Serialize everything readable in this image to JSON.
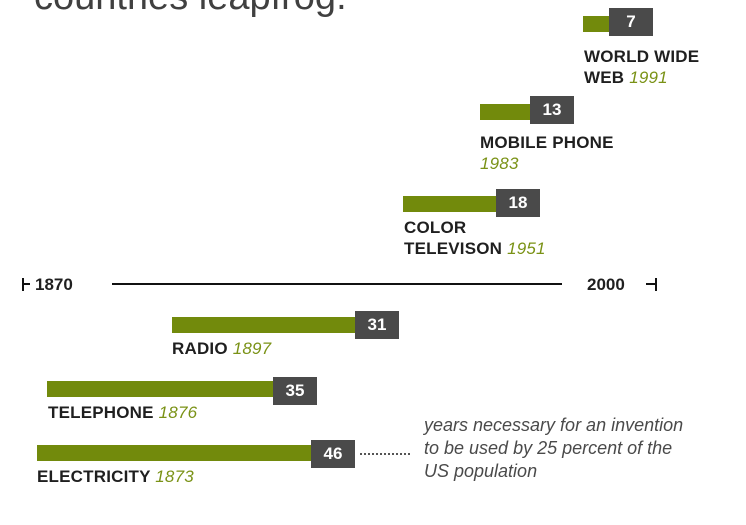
{
  "headline": "countries leapfrog.",
  "axis": {
    "start_label": "1870",
    "end_label": "2000"
  },
  "note": "years necessary for an invention to be used by 25 percent of the US population",
  "colors": {
    "bar": "#728a0c",
    "box": "#4a4a4a",
    "year": "#7a9216"
  },
  "chart_data": {
    "type": "bar",
    "categories": [
      "WORLD WIDE WEB",
      "MOBILE PHONE",
      "COLOR TELEVISON",
      "RADIO",
      "TELEPHONE",
      "ELECTRICITY"
    ],
    "invention_years": [
      "1991",
      "1983",
      "1951",
      "1897",
      "1876",
      "1873"
    ],
    "values": [
      7,
      13,
      18,
      31,
      35,
      46
    ],
    "value_label": "years necessary for an invention to be used by 25 percent of the US population",
    "x_range": [
      1870,
      2000
    ],
    "grid": false
  }
}
